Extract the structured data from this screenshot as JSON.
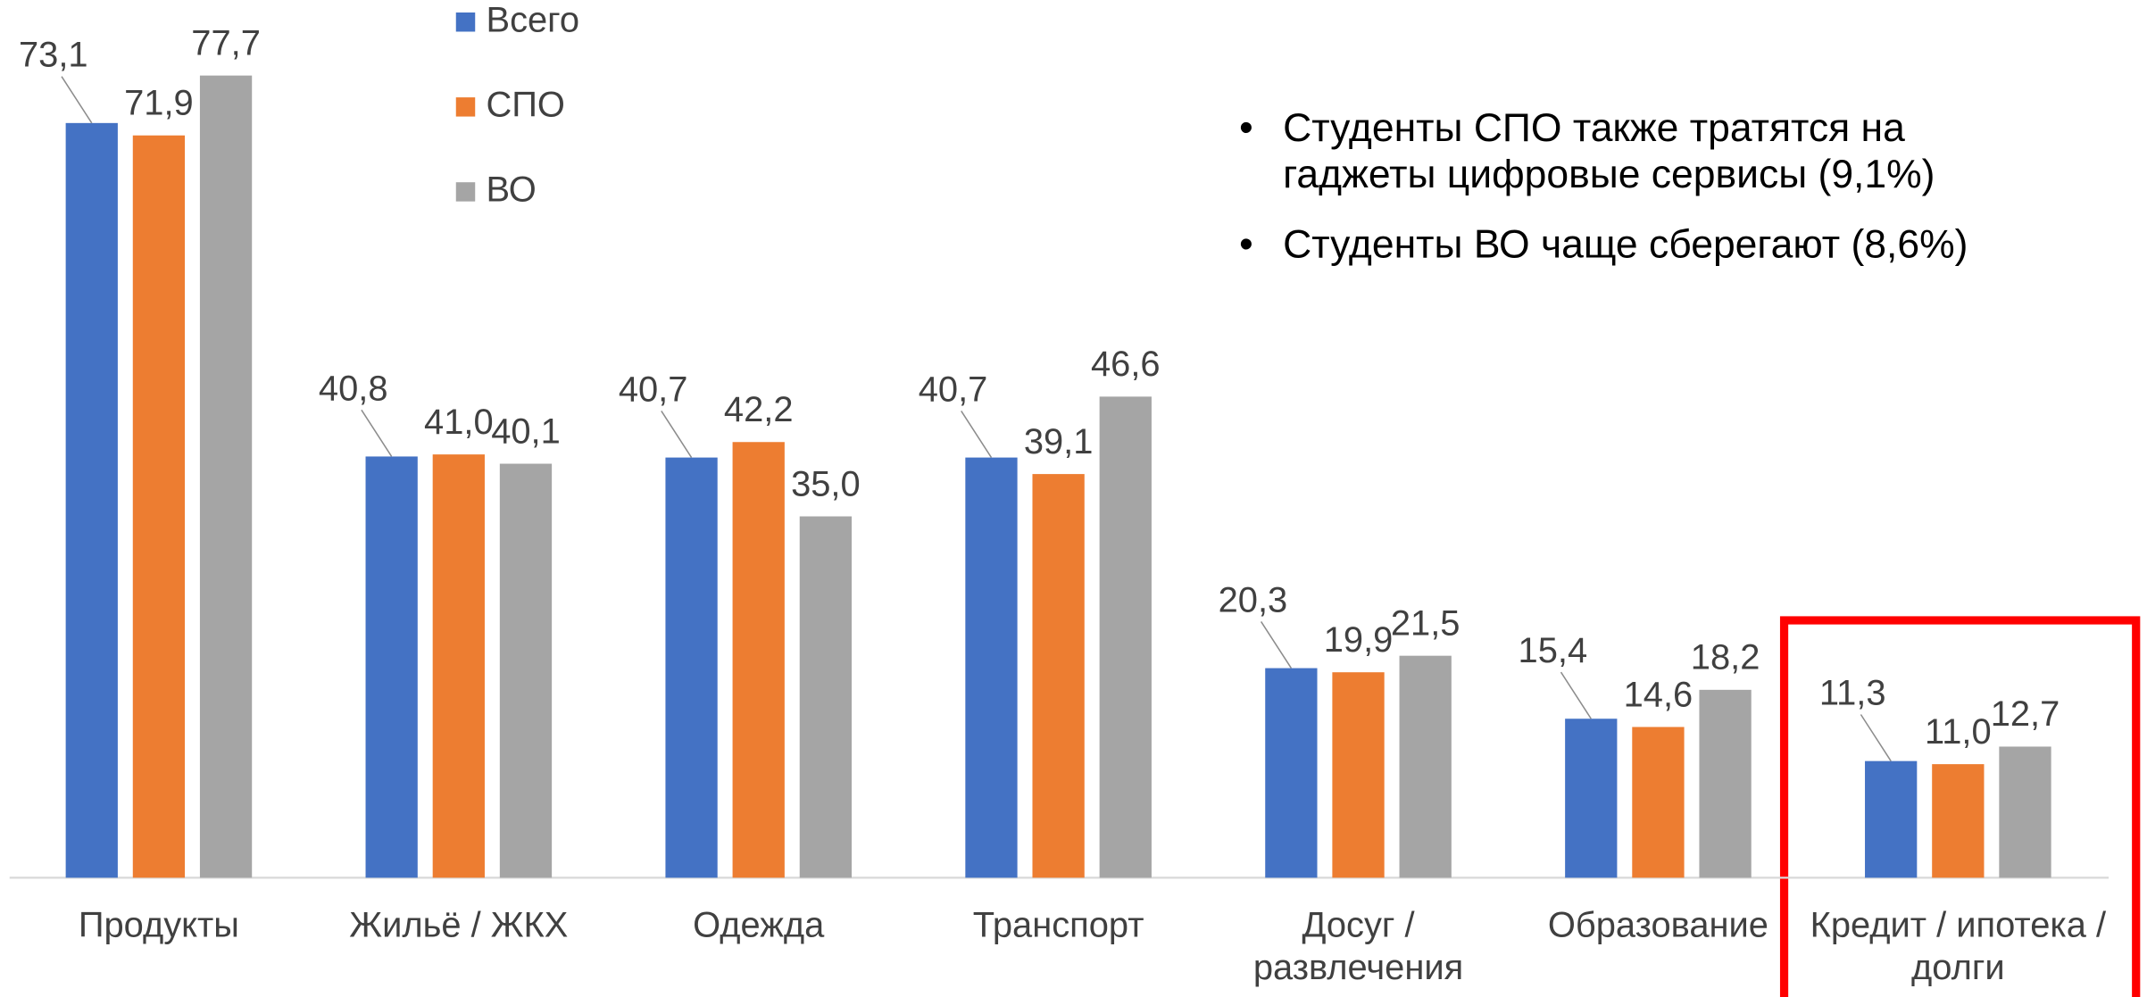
{
  "chart_data": {
    "type": "bar",
    "categories": [
      "Продукты",
      "Жильё / ЖКХ",
      "Одежда",
      "Транспорт",
      "Досуг / развлечения",
      "Образование",
      "Кредит / ипотека / долги"
    ],
    "series": [
      {
        "name": "Всего",
        "color": "#4472c4",
        "values": [
          73.1,
          40.8,
          40.7,
          40.7,
          20.3,
          15.4,
          11.3
        ],
        "value_labels": [
          "73,1",
          "40,8",
          "40,7",
          "40,7",
          "20,3",
          "15,4",
          "11,3"
        ]
      },
      {
        "name": "СПО",
        "color": "#ed7d31",
        "values": [
          71.9,
          41.0,
          42.2,
          39.1,
          19.9,
          14.6,
          11.0
        ],
        "value_labels": [
          "71,9",
          "41,0",
          "42,2",
          "39,1",
          "19,9",
          "14,6",
          "11,0"
        ]
      },
      {
        "name": "ВО",
        "color": "#a5a5a5",
        "values": [
          77.7,
          40.1,
          35.0,
          46.6,
          21.5,
          18.2,
          12.7
        ],
        "value_labels": [
          "77,7",
          "40,1",
          "35,0",
          "46,6",
          "21,5",
          "18,2",
          "12,7"
        ]
      }
    ],
    "ylim": [
      0,
      85
    ],
    "annotations": [
      "Студенты СПО также тратятся на гаджеты цифровые сервисы (9,1%)",
      "Студенты ВО чаще сберегают (8,6%)"
    ]
  }
}
